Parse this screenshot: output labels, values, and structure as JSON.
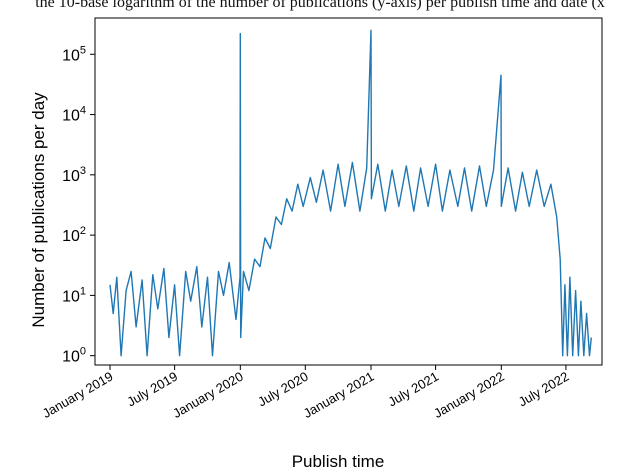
{
  "caption": "the 10-base logarithm of the number of publications (y-axis) per publish time and date (x",
  "chart_data": {
    "type": "line",
    "title": "",
    "xlabel": "Publish time",
    "ylabel": "Number of publications per day",
    "yscale": "log",
    "ylim": [
      0.7,
      400000
    ],
    "xlim": [
      "2018-11-20",
      "2022-10-10"
    ],
    "grid": false,
    "series_color": "#1f77b4",
    "x_ticks": [
      {
        "date": "2019-01-01",
        "label": "January 2019"
      },
      {
        "date": "2019-07-01",
        "label": "July 2019"
      },
      {
        "date": "2020-01-01",
        "label": "January 2020"
      },
      {
        "date": "2020-07-01",
        "label": "July 2020"
      },
      {
        "date": "2021-01-01",
        "label": "January 2021"
      },
      {
        "date": "2021-07-01",
        "label": "July 2021"
      },
      {
        "date": "2022-01-01",
        "label": "January 2022"
      },
      {
        "date": "2022-07-01",
        "label": "July 2022"
      }
    ],
    "y_ticks": [
      {
        "value": 1,
        "base": "10",
        "exp": "0"
      },
      {
        "value": 10,
        "base": "10",
        "exp": "1"
      },
      {
        "value": 100,
        "base": "10",
        "exp": "2"
      },
      {
        "value": 1000,
        "base": "10",
        "exp": "3"
      },
      {
        "value": 10000,
        "base": "10",
        "exp": "4"
      },
      {
        "value": 100000,
        "base": "10",
        "exp": "5"
      }
    ],
    "series": [
      {
        "points": [
          [
            "2019-01-01",
            15
          ],
          [
            "2019-01-10",
            5
          ],
          [
            "2019-01-20",
            20
          ],
          [
            "2019-02-01",
            1
          ],
          [
            "2019-02-15",
            12
          ],
          [
            "2019-03-01",
            25
          ],
          [
            "2019-03-15",
            3
          ],
          [
            "2019-04-01",
            18
          ],
          [
            "2019-04-15",
            1
          ],
          [
            "2019-05-01",
            22
          ],
          [
            "2019-05-15",
            6
          ],
          [
            "2019-06-01",
            28
          ],
          [
            "2019-06-15",
            2
          ],
          [
            "2019-07-01",
            15
          ],
          [
            "2019-07-15",
            1
          ],
          [
            "2019-08-01",
            25
          ],
          [
            "2019-08-15",
            8
          ],
          [
            "2019-09-01",
            30
          ],
          [
            "2019-09-15",
            3
          ],
          [
            "2019-10-01",
            20
          ],
          [
            "2019-10-15",
            1
          ],
          [
            "2019-11-01",
            25
          ],
          [
            "2019-11-15",
            10
          ],
          [
            "2019-12-01",
            35
          ],
          [
            "2019-12-20",
            4
          ],
          [
            "2019-12-31",
            20
          ],
          [
            "2020-01-01",
            220000
          ],
          [
            "2020-01-02",
            2
          ],
          [
            "2020-01-10",
            25
          ],
          [
            "2020-01-25",
            12
          ],
          [
            "2020-02-10",
            40
          ],
          [
            "2020-02-25",
            30
          ],
          [
            "2020-03-10",
            90
          ],
          [
            "2020-03-25",
            60
          ],
          [
            "2020-04-10",
            200
          ],
          [
            "2020-04-25",
            150
          ],
          [
            "2020-05-10",
            400
          ],
          [
            "2020-05-25",
            250
          ],
          [
            "2020-06-10",
            700
          ],
          [
            "2020-06-25",
            300
          ],
          [
            "2020-07-15",
            900
          ],
          [
            "2020-08-01",
            350
          ],
          [
            "2020-08-20",
            1200
          ],
          [
            "2020-09-10",
            250
          ],
          [
            "2020-10-01",
            1500
          ],
          [
            "2020-10-20",
            300
          ],
          [
            "2020-11-10",
            1600
          ],
          [
            "2020-12-01",
            250
          ],
          [
            "2020-12-20",
            1300
          ],
          [
            "2021-01-01",
            250000
          ],
          [
            "2021-01-02",
            400
          ],
          [
            "2021-01-20",
            1500
          ],
          [
            "2021-02-10",
            250
          ],
          [
            "2021-03-01",
            1200
          ],
          [
            "2021-03-20",
            300
          ],
          [
            "2021-04-10",
            1400
          ],
          [
            "2021-05-01",
            250
          ],
          [
            "2021-05-20",
            1300
          ],
          [
            "2021-06-10",
            300
          ],
          [
            "2021-07-01",
            1500
          ],
          [
            "2021-07-20",
            250
          ],
          [
            "2021-08-10",
            1200
          ],
          [
            "2021-09-01",
            300
          ],
          [
            "2021-09-20",
            1300
          ],
          [
            "2021-10-10",
            250
          ],
          [
            "2021-11-01",
            1400
          ],
          [
            "2021-11-20",
            300
          ],
          [
            "2021-12-10",
            1200
          ],
          [
            "2021-12-31",
            45000
          ],
          [
            "2022-01-01",
            300
          ],
          [
            "2022-01-20",
            1300
          ],
          [
            "2022-02-10",
            250
          ],
          [
            "2022-03-01",
            1100
          ],
          [
            "2022-03-20",
            300
          ],
          [
            "2022-04-10",
            1200
          ],
          [
            "2022-05-01",
            300
          ],
          [
            "2022-05-20",
            700
          ],
          [
            "2022-06-05",
            200
          ],
          [
            "2022-06-15",
            40
          ],
          [
            "2022-06-22",
            1
          ],
          [
            "2022-06-28",
            15
          ],
          [
            "2022-07-05",
            1
          ],
          [
            "2022-07-12",
            20
          ],
          [
            "2022-07-20",
            1
          ],
          [
            "2022-07-28",
            12
          ],
          [
            "2022-08-05",
            1
          ],
          [
            "2022-08-12",
            8
          ],
          [
            "2022-08-20",
            1
          ],
          [
            "2022-08-28",
            5
          ],
          [
            "2022-09-05",
            1
          ],
          [
            "2022-09-10",
            2
          ]
        ]
      }
    ]
  }
}
